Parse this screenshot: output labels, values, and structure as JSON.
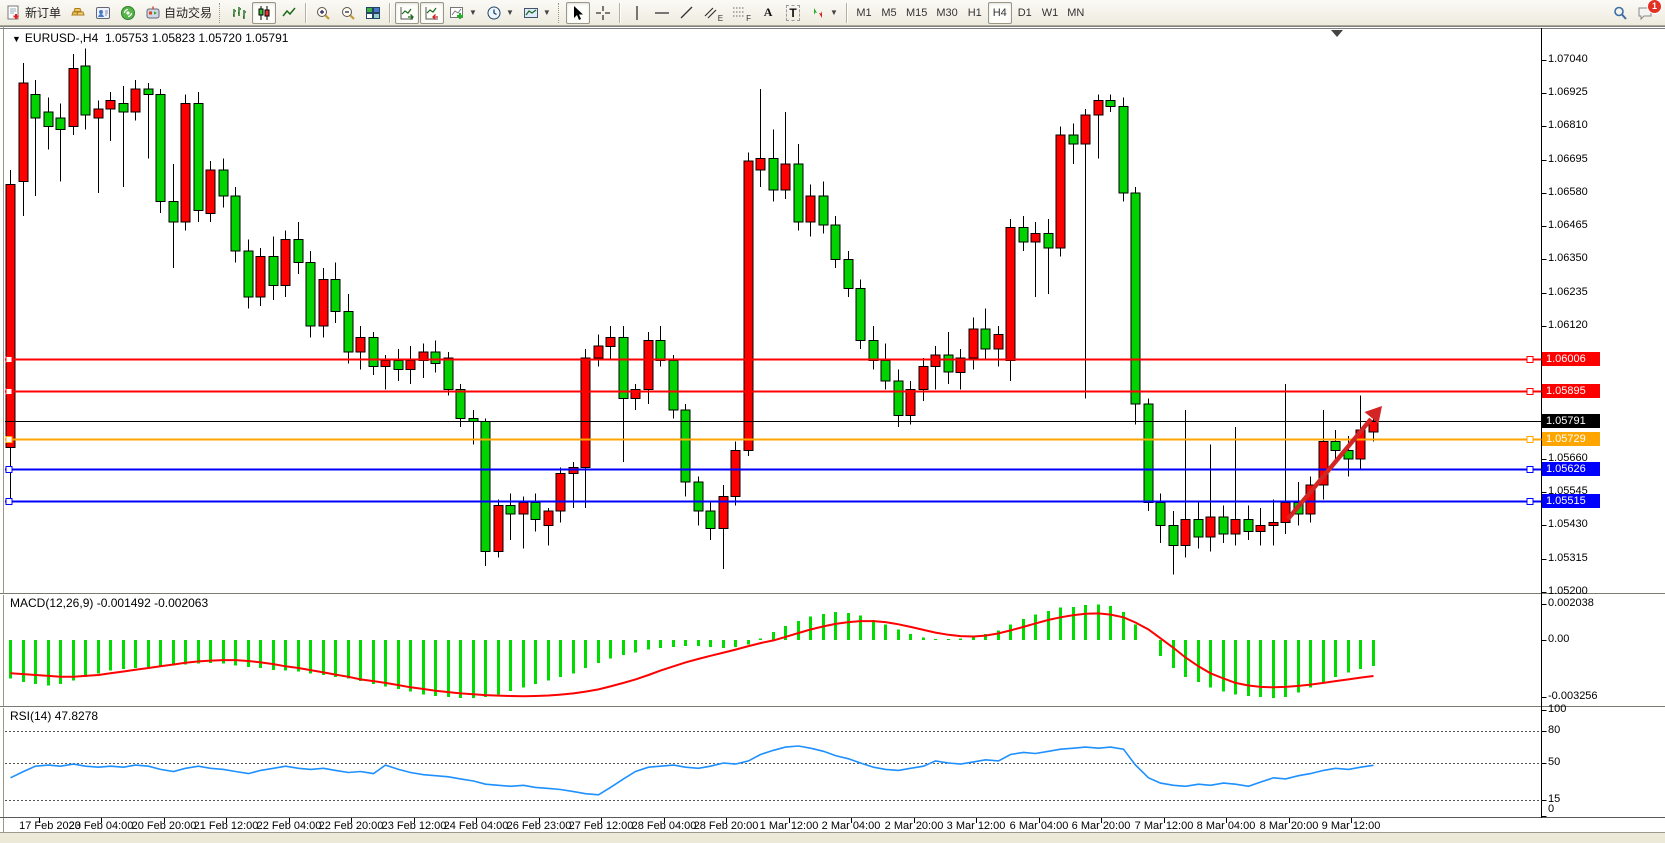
{
  "toolbar": {
    "new_order_label": "新订单",
    "auto_trading_label": "自动交易",
    "icon_glyphs": {
      "text_tool": "A",
      "label_tool": "T",
      "channel_sub": "E",
      "fibo_sub": "F"
    },
    "timeframes": [
      "M1",
      "M5",
      "M15",
      "M30",
      "H1",
      "H4",
      "D1",
      "W1",
      "MN"
    ],
    "active_timeframe": "H4",
    "notification_count": "1"
  },
  "chart": {
    "symbol": "EURUSD-,H4",
    "ohlc": "1.05753 1.05823 1.05720 1.05791",
    "colors": {
      "bull": "#ff0000",
      "bear": "#00d300",
      "wick": "#000000"
    },
    "price_ticks": [
      1.0704,
      1.06925,
      1.0681,
      1.06695,
      1.0658,
      1.06465,
      1.0635,
      1.06235,
      1.0612,
      1.0566,
      1.05545,
      1.0543,
      1.05315,
      1.052
    ],
    "lines": [
      {
        "price": 1.06006,
        "color": "#ff0000",
        "type": "resistance"
      },
      {
        "price": 1.05895,
        "color": "#ff0000",
        "type": "resistance"
      },
      {
        "price": 1.05791,
        "color": "#000000",
        "type": "current-price"
      },
      {
        "price": 1.05729,
        "color": "#ffa500",
        "type": "pivot"
      },
      {
        "price": 1.05626,
        "color": "#0000ff",
        "type": "support"
      },
      {
        "price": 1.05515,
        "color": "#0000ff",
        "type": "support"
      }
    ],
    "annotation": {
      "type": "up-arrow",
      "color": "#d42525"
    },
    "candles": [
      [
        1.057,
        1.0666,
        1.0552,
        1.0661
      ],
      [
        1.0662,
        1.0703,
        1.065,
        1.0696
      ],
      [
        1.0692,
        1.0697,
        1.0657,
        1.0684
      ],
      [
        1.0686,
        1.0691,
        1.0673,
        1.0681
      ],
      [
        1.0684,
        1.0689,
        1.0662,
        1.068
      ],
      [
        1.0681,
        1.0706,
        1.0678,
        1.0701
      ],
      [
        1.0702,
        1.0708,
        1.068,
        1.0685
      ],
      [
        1.0684,
        1.069,
        1.0658,
        1.0687
      ],
      [
        1.0687,
        1.0693,
        1.0676,
        1.069
      ],
      [
        1.0689,
        1.0695,
        1.066,
        1.0686
      ],
      [
        1.0686,
        1.0697,
        1.0683,
        1.0694
      ],
      [
        1.0694,
        1.0696,
        1.067,
        1.0692
      ],
      [
        1.0692,
        1.0694,
        1.0651,
        1.0655
      ],
      [
        1.0655,
        1.0668,
        1.0632,
        1.0648
      ],
      [
        1.0648,
        1.0692,
        1.0645,
        1.0689
      ],
      [
        1.0689,
        1.0693,
        1.0648,
        1.0652
      ],
      [
        1.0651,
        1.0669,
        1.0648,
        1.0666
      ],
      [
        1.0666,
        1.067,
        1.0653,
        1.0657
      ],
      [
        1.0657,
        1.066,
        1.0634,
        1.0638
      ],
      [
        1.0638,
        1.0642,
        1.0618,
        1.0622
      ],
      [
        1.0622,
        1.0639,
        1.0619,
        1.0636
      ],
      [
        1.0636,
        1.0643,
        1.0621,
        1.0626
      ],
      [
        1.0626,
        1.0645,
        1.0622,
        1.0642
      ],
      [
        1.0642,
        1.0648,
        1.063,
        1.0634
      ],
      [
        1.0634,
        1.0638,
        1.0608,
        1.0612
      ],
      [
        1.0612,
        1.0632,
        1.0608,
        1.0628
      ],
      [
        1.0628,
        1.0634,
        1.0613,
        1.0617
      ],
      [
        1.0617,
        1.0623,
        1.0599,
        1.0603
      ],
      [
        1.0603,
        1.0612,
        1.0597,
        1.0608
      ],
      [
        1.0608,
        1.061,
        1.0595,
        1.0598
      ],
      [
        1.0598,
        1.0602,
        1.059,
        1.06
      ],
      [
        1.06,
        1.0604,
        1.0593,
        1.0597
      ],
      [
        1.0597,
        1.0605,
        1.0592,
        1.06
      ],
      [
        1.06,
        1.0606,
        1.0594,
        1.0603
      ],
      [
        1.0603,
        1.0607,
        1.0596,
        1.0599
      ],
      [
        1.0601,
        1.0603,
        1.0588,
        1.059
      ],
      [
        1.059,
        1.0592,
        1.0577,
        1.058
      ],
      [
        1.058,
        1.0583,
        1.0571,
        1.0579
      ],
      [
        1.0579,
        1.058,
        1.0529,
        1.0534
      ],
      [
        1.0534,
        1.0552,
        1.0532,
        1.055
      ],
      [
        1.055,
        1.0554,
        1.0538,
        1.0547
      ],
      [
        1.0547,
        1.0553,
        1.0535,
        1.0551
      ],
      [
        1.0551,
        1.0554,
        1.0541,
        1.0545
      ],
      [
        1.0543,
        1.0549,
        1.0536,
        1.0548
      ],
      [
        1.0548,
        1.0563,
        1.0544,
        1.0561
      ],
      [
        1.0561,
        1.0565,
        1.0549,
        1.0563
      ],
      [
        1.0563,
        1.0604,
        1.0549,
        1.0601
      ],
      [
        1.0601,
        1.0609,
        1.0598,
        1.0605
      ],
      [
        1.0605,
        1.0612,
        1.06,
        1.0608
      ],
      [
        1.0608,
        1.0612,
        1.0565,
        1.0587
      ],
      [
        1.0587,
        1.0592,
        1.0583,
        1.059
      ],
      [
        1.059,
        1.061,
        1.0585,
        1.0607
      ],
      [
        1.0607,
        1.0612,
        1.0598,
        1.06
      ],
      [
        1.06,
        1.0602,
        1.058,
        1.0583
      ],
      [
        1.0583,
        1.0585,
        1.0553,
        1.0558
      ],
      [
        1.0558,
        1.056,
        1.0543,
        1.0548
      ],
      [
        1.0548,
        1.0551,
        1.0538,
        1.0542
      ],
      [
        1.0542,
        1.0557,
        1.0528,
        1.0553
      ],
      [
        1.0553,
        1.0572,
        1.055,
        1.0569
      ],
      [
        1.0569,
        1.0672,
        1.0567,
        1.0669
      ],
      [
        1.0666,
        1.0694,
        1.066,
        1.067
      ],
      [
        1.067,
        1.068,
        1.0655,
        1.0659
      ],
      [
        1.0659,
        1.0686,
        1.0656,
        1.0668
      ],
      [
        1.0668,
        1.0675,
        1.0645,
        1.0648
      ],
      [
        1.0648,
        1.0661,
        1.0643,
        1.0657
      ],
      [
        1.0657,
        1.0662,
        1.0644,
        1.0647
      ],
      [
        1.0647,
        1.065,
        1.0632,
        1.0635
      ],
      [
        1.0635,
        1.0638,
        1.0622,
        1.0625
      ],
      [
        1.0625,
        1.0628,
        1.0604,
        1.0607
      ],
      [
        1.0607,
        1.0612,
        1.0597,
        1.06
      ],
      [
        1.06,
        1.0606,
        1.059,
        1.0593
      ],
      [
        1.0593,
        1.0597,
        1.0577,
        1.0581
      ],
      [
        1.0581,
        1.0593,
        1.0578,
        1.059
      ],
      [
        1.059,
        1.0601,
        1.0586,
        1.0598
      ],
      [
        1.0598,
        1.0605,
        1.059,
        1.0602
      ],
      [
        1.0602,
        1.061,
        1.0592,
        1.0596
      ],
      [
        1.0596,
        1.0604,
        1.059,
        1.0601
      ],
      [
        1.0601,
        1.0615,
        1.0597,
        1.0611
      ],
      [
        1.0611,
        1.0618,
        1.06,
        1.0604
      ],
      [
        1.0604,
        1.0612,
        1.0598,
        1.0609
      ],
      [
        1.06,
        1.0649,
        1.0593,
        1.0646
      ],
      [
        1.0646,
        1.065,
        1.0638,
        1.0641
      ],
      [
        1.0641,
        1.0648,
        1.0622,
        1.0644
      ],
      [
        1.0644,
        1.0649,
        1.0623,
        1.0639
      ],
      [
        1.0639,
        1.0681,
        1.0636,
        1.0678
      ],
      [
        1.0678,
        1.0682,
        1.0668,
        1.0675
      ],
      [
        1.0675,
        1.0687,
        1.0587,
        1.0685
      ],
      [
        1.0685,
        1.0692,
        1.067,
        1.069
      ],
      [
        1.069,
        1.0692,
        1.0686,
        1.0688
      ],
      [
        1.0688,
        1.0691,
        1.0655,
        1.0658
      ],
      [
        1.0658,
        1.066,
        1.0578,
        1.0585
      ],
      [
        1.0585,
        1.0587,
        1.0548,
        1.0551
      ],
      [
        1.0551,
        1.0554,
        1.0537,
        1.0543
      ],
      [
        1.0543,
        1.0548,
        1.0526,
        1.0536
      ],
      [
        1.0536,
        1.0583,
        1.0532,
        1.0545
      ],
      [
        1.0545,
        1.0551,
        1.0535,
        1.0539
      ],
      [
        1.0539,
        1.0571,
        1.0534,
        1.0546
      ],
      [
        1.0546,
        1.055,
        1.0537,
        1.054
      ],
      [
        1.054,
        1.0577,
        1.0536,
        1.0545
      ],
      [
        1.0545,
        1.055,
        1.0538,
        1.0541
      ],
      [
        1.0541,
        1.0549,
        1.0536,
        1.0543
      ],
      [
        1.0543,
        1.0552,
        1.0536,
        1.0544
      ],
      [
        1.0544,
        1.0592,
        1.054,
        1.0551
      ],
      [
        1.0551,
        1.0558,
        1.0543,
        1.0547
      ],
      [
        1.0547,
        1.056,
        1.0544,
        1.0557
      ],
      [
        1.0557,
        1.0583,
        1.0552,
        1.0572
      ],
      [
        1.0572,
        1.0576,
        1.0566,
        1.0569
      ],
      [
        1.0569,
        1.0574,
        1.056,
        1.0566
      ],
      [
        1.0566,
        1.0588,
        1.0562,
        1.0576
      ],
      [
        1.05753,
        1.05823,
        1.0572,
        1.05791
      ]
    ]
  },
  "macd": {
    "name": "MACD(12,26,9)",
    "value_main": "-0.001492",
    "value_signal": "-0.002063",
    "axis": [
      0.002038,
      0,
      -0.003256
    ],
    "axis_labels": [
      "0.002038",
      "0.00",
      "-0.003256"
    ],
    "colors": {
      "hist": "#00db00",
      "signal": "#ff0000"
    },
    "hist": [
      -0.0022,
      -0.0024,
      -0.0025,
      -0.0026,
      -0.0025,
      -0.0023,
      -0.0021,
      -0.0019,
      -0.00175,
      -0.00165,
      -0.0016,
      -0.00155,
      -0.0015,
      -0.00145,
      -0.0014,
      -0.00135,
      -0.0013,
      -0.00135,
      -0.00145,
      -0.00155,
      -0.0016,
      -0.0017,
      -0.00175,
      -0.0018,
      -0.0019,
      -0.002,
      -0.0021,
      -0.0022,
      -0.00235,
      -0.0025,
      -0.00265,
      -0.0028,
      -0.00295,
      -0.0031,
      -0.0032,
      -0.00325,
      -0.0033,
      -0.0033,
      -0.00325,
      -0.0031,
      -0.0029,
      -0.0027,
      -0.0025,
      -0.0023,
      -0.0021,
      -0.0019,
      -0.0016,
      -0.0013,
      -0.00105,
      -0.00085,
      -0.0007,
      -0.00055,
      -0.00045,
      -0.0004,
      -0.00035,
      -0.00035,
      -0.0004,
      -0.00045,
      -0.0004,
      -0.00025,
      0.0001,
      0.00045,
      0.0008,
      0.0011,
      0.00135,
      0.0015,
      0.0016,
      0.00155,
      0.0014,
      0.00115,
      0.0009,
      0.0006,
      0.00035,
      0.00015,
      5e-05,
      5e-05,
      0.0001,
      0.0002,
      0.00035,
      0.00055,
      0.0009,
      0.0012,
      0.00145,
      0.00165,
      0.00185,
      0.0019,
      0.002,
      0.00204,
      0.00195,
      0.0016,
      0.0009,
      0.0,
      -0.0009,
      -0.0016,
      -0.0021,
      -0.0024,
      -0.0027,
      -0.00295,
      -0.0031,
      -0.0032,
      -0.00325,
      -0.0033,
      -0.00325,
      -0.003,
      -0.0027,
      -0.0024,
      -0.0021,
      -0.00185,
      -0.00165,
      -0.00149
    ],
    "signal": [
      -0.0019,
      -0.00195,
      -0.002,
      -0.00205,
      -0.0021,
      -0.0021,
      -0.00205,
      -0.002,
      -0.0019,
      -0.0018,
      -0.0017,
      -0.0016,
      -0.0015,
      -0.0014,
      -0.0013,
      -0.00122,
      -0.00118,
      -0.00115,
      -0.00115,
      -0.0012,
      -0.00128,
      -0.00138,
      -0.0015,
      -0.0016,
      -0.00172,
      -0.00185,
      -0.00198,
      -0.0021,
      -0.00225,
      -0.00235,
      -0.00245,
      -0.00258,
      -0.0027,
      -0.0028,
      -0.0029,
      -0.00298,
      -0.00305,
      -0.0031,
      -0.00315,
      -0.00318,
      -0.0032,
      -0.00321,
      -0.0032,
      -0.00317,
      -0.00312,
      -0.00305,
      -0.00295,
      -0.00282,
      -0.00265,
      -0.00245,
      -0.00225,
      -0.002,
      -0.00175,
      -0.0015,
      -0.00128,
      -0.00108,
      -0.0009,
      -0.00072,
      -0.00055,
      -0.00035,
      -0.00018,
      -2e-05,
      0.00018,
      0.0004,
      0.0006,
      0.00078,
      0.00092,
      0.00102,
      0.00108,
      0.00108,
      0.00102,
      0.0009,
      0.00075,
      0.00058,
      0.00042,
      0.0003,
      0.00022,
      0.0002,
      0.00025,
      0.00038,
      0.00055,
      0.00075,
      0.00095,
      0.00115,
      0.0013,
      0.00142,
      0.0015,
      0.00152,
      0.00145,
      0.0013,
      0.001,
      0.0006,
      0.0001,
      -0.00045,
      -0.001,
      -0.0015,
      -0.0019,
      -0.0022,
      -0.00245,
      -0.0026,
      -0.00268,
      -0.0027,
      -0.00268,
      -0.00262,
      -0.00255,
      -0.00245,
      -0.00235,
      -0.00225,
      -0.00215,
      -0.00206
    ]
  },
  "rsi": {
    "name": "RSI(14)",
    "value": "47.8278",
    "levels": [
      80,
      50,
      15
    ],
    "axis_labels": [
      "100",
      "80",
      "50",
      "15",
      "0"
    ],
    "axis_values": [
      100,
      80,
      50,
      15,
      0
    ],
    "color": "#1e90ff",
    "values": [
      36,
      42,
      47,
      48,
      47,
      49,
      47,
      46,
      47,
      46,
      48,
      47,
      44,
      42,
      45,
      47,
      45,
      44,
      42,
      40,
      43,
      45,
      47,
      45,
      44,
      45,
      43,
      41,
      42,
      40,
      48,
      44,
      41,
      39,
      38,
      37,
      35,
      33,
      30,
      29,
      28,
      29,
      27,
      26,
      25,
      23,
      21,
      20,
      27,
      35,
      42,
      46,
      47,
      48,
      46,
      45,
      47,
      50,
      49,
      52,
      58,
      62,
      65,
      66,
      64,
      61,
      57,
      54,
      50,
      46,
      44,
      43,
      45,
      47,
      52,
      50,
      49,
      51,
      53,
      52,
      58,
      60,
      59,
      61,
      63,
      64,
      65,
      64,
      65,
      63,
      48,
      36,
      31,
      29,
      28,
      30,
      29,
      31,
      30,
      28,
      32,
      36,
      35,
      38,
      40,
      43,
      45,
      44,
      46,
      47.8
    ]
  },
  "time_axis": [
    "17 Feb 2023",
    "20 Feb 04:00",
    "20 Feb 20:00",
    "21 Feb 12:00",
    "22 Feb 04:00",
    "22 Feb 20:00",
    "23 Feb 12:00",
    "24 Feb 04:00",
    "26 Feb 23:00",
    "27 Feb 12:00",
    "28 Feb 04:00",
    "28 Feb 20:00",
    "1 Mar 12:00",
    "2 Mar 04:00",
    "2 Mar 20:00",
    "3 Mar 12:00",
    "6 Mar 04:00",
    "6 Mar 20:00",
    "7 Mar 12:00",
    "8 Mar 04:00",
    "8 Mar 20:00",
    "9 Mar 12:00"
  ]
}
